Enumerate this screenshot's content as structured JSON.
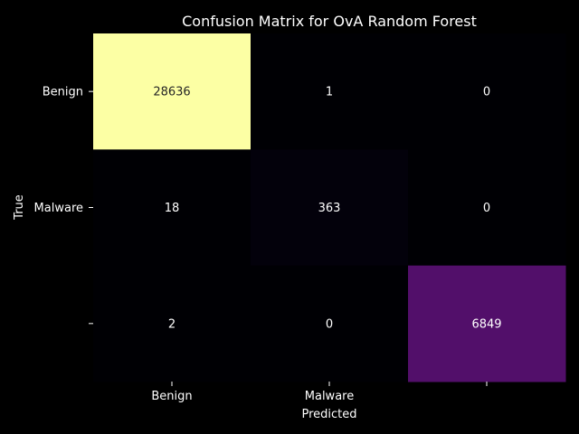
{
  "chart_data": {
    "type": "heatmap",
    "title": "Confusion Matrix for OvA Random Forest",
    "xlabel": "Predicted",
    "ylabel": "True",
    "x_tick_labels": [
      "Benign",
      "Malware",
      ""
    ],
    "y_tick_labels": [
      "Benign",
      "Malware",
      ""
    ],
    "matrix": [
      [
        28636,
        1,
        0
      ],
      [
        18,
        363,
        0
      ],
      [
        2,
        0,
        6849
      ]
    ],
    "colormap": "inferno",
    "colorbar": false,
    "annotations": true,
    "colors": {
      "background": "#000000",
      "text": "#ffffff",
      "max_cell": "#fcffa4",
      "mid_cell": "#541068",
      "min_cell": "#000004"
    }
  }
}
